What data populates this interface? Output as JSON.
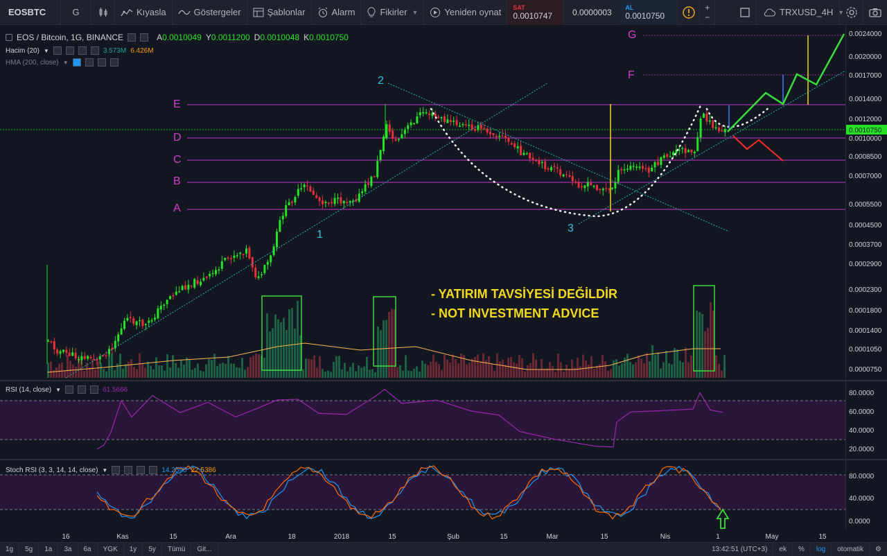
{
  "toolbar": {
    "symbol": "EOSBTC",
    "interval": "G",
    "compare": "Kıyasla",
    "indicators": "Göstergeler",
    "templates": "Şablonlar",
    "alert": "Alarm",
    "ideas": "Fikirler",
    "replay": "Yeniden oynat",
    "sell_label": "SAT",
    "sell_price": "0.0010747",
    "spread": "0.0000003",
    "buy_label": "AL",
    "buy_price": "0.0010750",
    "layout_name": "TRXUSD_4H"
  },
  "legend": {
    "main_title": "EOS / Bitcoin, 1G, BINANCE",
    "o_label": "A",
    "o_value": "0.0010049",
    "h_label": "Y",
    "h_value": "0.0011200",
    "l_label": "D",
    "l_value": "0.0010048",
    "c_label": "K",
    "c_value": "0.0010750",
    "volume_title": "Hacim (20)",
    "volume_v1": "3.573M",
    "volume_v2": "6.426M",
    "hma_title": "HMA (200, close)",
    "rsi_title": "RSI (14, close)",
    "rsi_value": "61.5666",
    "stoch_title": "Stoch RSI (3, 3, 14, 14, close)",
    "stoch_k": "14.2590",
    "stoch_d": "22.5386"
  },
  "price_axis": [
    "0.0024000",
    "0.0020000",
    "0.0017000",
    "0.0014000",
    "0.0012000",
    "0.0010000",
    "0.0008500",
    "0.0007000",
    "0.0005500",
    "0.0004500",
    "0.0003700",
    "0.0002900",
    "0.0002300",
    "0.0001800",
    "0.0001400",
    "0.0001050",
    "0.0000750"
  ],
  "current_price": "0.0010750",
  "rsi_axis": [
    "80.0000",
    "60.0000",
    "40.0000",
    "20.0000"
  ],
  "stoch_axis": [
    "80.0000",
    "40.0000",
    "0.0000"
  ],
  "time_axis": [
    "16",
    "Kas",
    "15",
    "Ara",
    "18",
    "2018",
    "15",
    "Şub",
    "15",
    "Mar",
    "15",
    "Nis",
    "1",
    "May",
    "15"
  ],
  "levels": [
    "A",
    "B",
    "C",
    "D",
    "E",
    "F",
    "G"
  ],
  "waves": [
    "1",
    "2",
    "3"
  ],
  "notes": [
    "- YATIRIM TAVSİYESİ DEĞİLDİR",
    "- NOT INVESTMENT ADVICE"
  ],
  "bottom_bar": {
    "ranges": [
      "1g",
      "5g",
      "1a",
      "3a",
      "6a",
      "YGK",
      "1y",
      "5y",
      "Tümü",
      "Git..."
    ],
    "clock": "13:42:51 (UTC+3)",
    "ext": "ek",
    "pct": "%",
    "log": "log",
    "auto": "otomatik"
  },
  "colors": {
    "background": "#131722",
    "up": "#26e326",
    "down": "#e8303a",
    "level_line": "#c837c8",
    "trend_line": "#2ab4b4",
    "note_text": "#f5d91e",
    "rsi_line": "#9c27b0",
    "stoch_k": "#2196f3",
    "stoch_d": "#ff6d00"
  }
}
